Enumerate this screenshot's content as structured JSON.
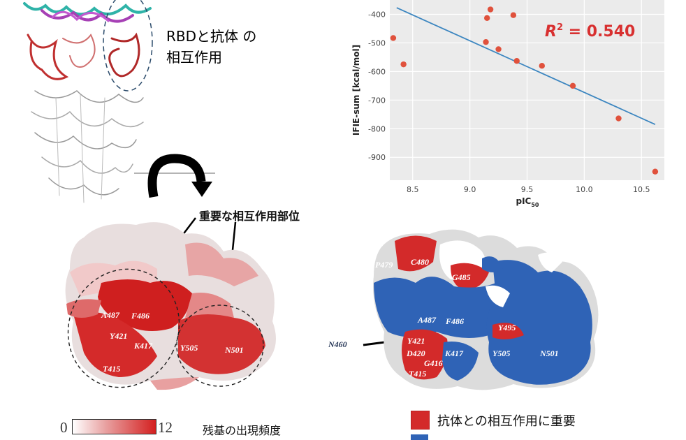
{
  "top_left": {
    "title_line1": "RBDと抗体 の",
    "title_line2": "相互作用"
  },
  "annotation": {
    "important_sites": "重要な相互作用部位"
  },
  "left_surface": {
    "residues": [
      "A487",
      "F486",
      "Y421",
      "K417",
      "T415",
      "Y505",
      "N501"
    ]
  },
  "right_surface": {
    "residues": [
      "P479",
      "C480",
      "G485",
      "A487",
      "F486",
      "Y495",
      "Y421",
      "D420",
      "G416",
      "T415",
      "K417",
      "Y505",
      "N501"
    ],
    "pointer_label": "N460"
  },
  "colorbar": {
    "min": "0",
    "max": "12",
    "label": "残基の出現頻度"
  },
  "legend": {
    "red_label": "抗体との相互作用に重要",
    "red_color": "#d32a2a",
    "blue_color": "#2f63b6"
  },
  "chart_data": {
    "type": "scatter",
    "title": "",
    "xlabel": "pIC",
    "xlabel_sub": "50",
    "ylabel": "IFIE-sum [kcal/mol]",
    "x_ticks": [
      "8.5",
      "9.0",
      "9.5",
      "10.0",
      "10.5"
    ],
    "y_ticks": [
      "-400",
      "-500",
      "-600",
      "-700",
      "-800",
      "-900"
    ],
    "xlim": [
      8.3,
      10.7
    ],
    "ylim": [
      -980,
      -350
    ],
    "points": [
      {
        "x": 8.33,
        "y": -483
      },
      {
        "x": 8.42,
        "y": -575
      },
      {
        "x": 9.15,
        "y": -413
      },
      {
        "x": 9.14,
        "y": -497
      },
      {
        "x": 9.18,
        "y": -383
      },
      {
        "x": 9.25,
        "y": -522
      },
      {
        "x": 9.38,
        "y": -403
      },
      {
        "x": 9.41,
        "y": -563
      },
      {
        "x": 9.63,
        "y": -580
      },
      {
        "x": 9.9,
        "y": -650
      },
      {
        "x": 10.3,
        "y": -764
      },
      {
        "x": 10.62,
        "y": -950
      }
    ],
    "fit_line": {
      "x": [
        8.36,
        10.62
      ],
      "y": [
        -377,
        -785
      ]
    },
    "r2_prefix": "R",
    "r2_sup": "2",
    "r2_value": " = 0.540",
    "point_color": "#e0513c",
    "line_color": "#3c86c0",
    "r2_color": "#d83030"
  }
}
